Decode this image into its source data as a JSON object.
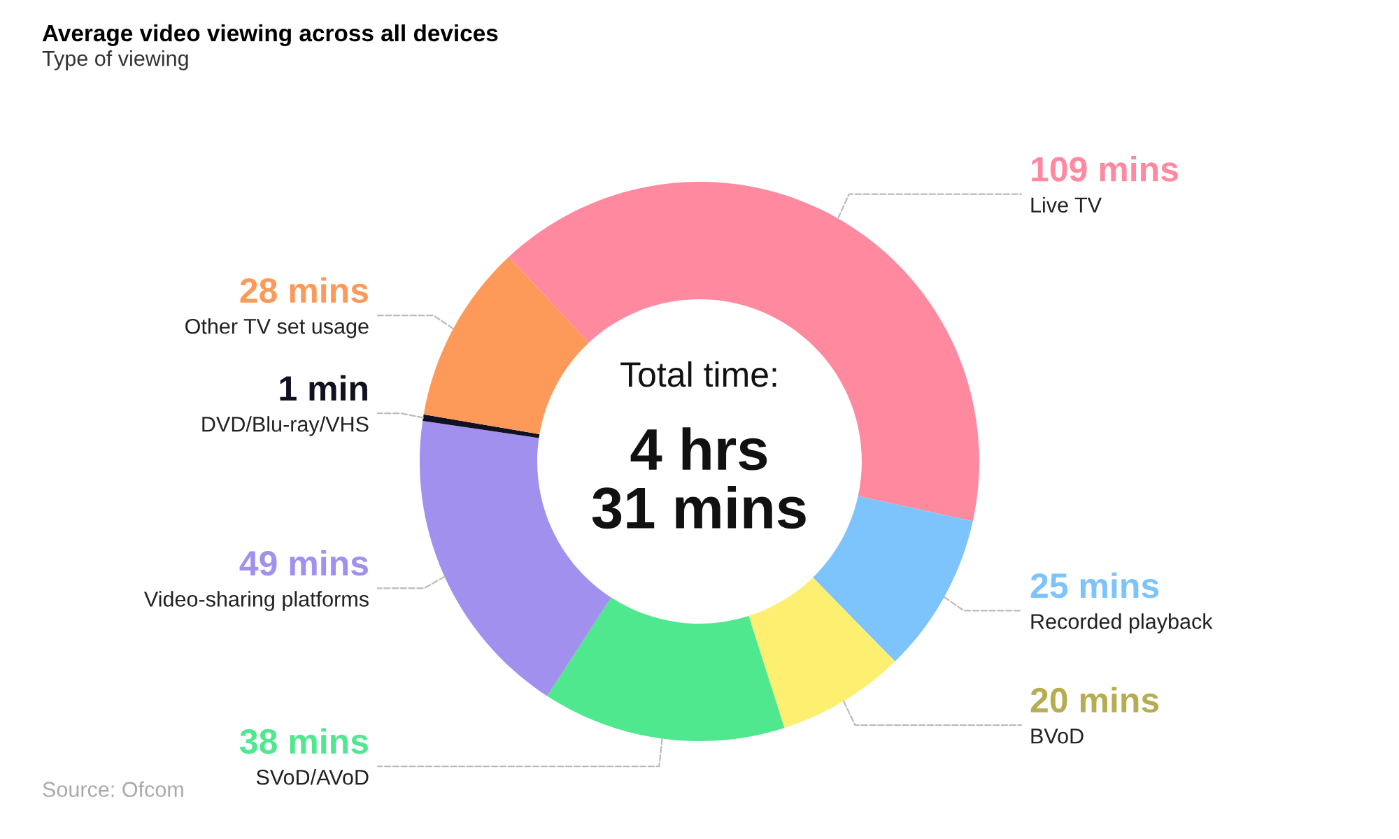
{
  "chart_data": {
    "type": "donut",
    "title": "Average video viewing across all devices",
    "subtitle": "Type of viewing",
    "categories": [
      "Live TV",
      "Recorded playback",
      "BVoD",
      "SVoD/AVoD",
      "Video-sharing platforms",
      "DVD/Blu-ray/VHS",
      "Other TV set usage"
    ],
    "values": [
      109,
      25,
      20,
      38,
      49,
      1,
      28
    ],
    "value_labels": [
      "109 mins",
      "25 mins",
      "20 mins",
      "38 mins",
      "49 mins",
      "1 min",
      "28 mins"
    ],
    "colors": [
      "#ff8a9f",
      "#7cc4fb",
      "#fdf071",
      "#4fe88f",
      "#a290ee",
      "#111122",
      "#fd9a5a"
    ],
    "annotations": [
      "Total time:",
      "4 hrs\n31 mins",
      "Source: Ofcom"
    ],
    "legend": false
  }
}
